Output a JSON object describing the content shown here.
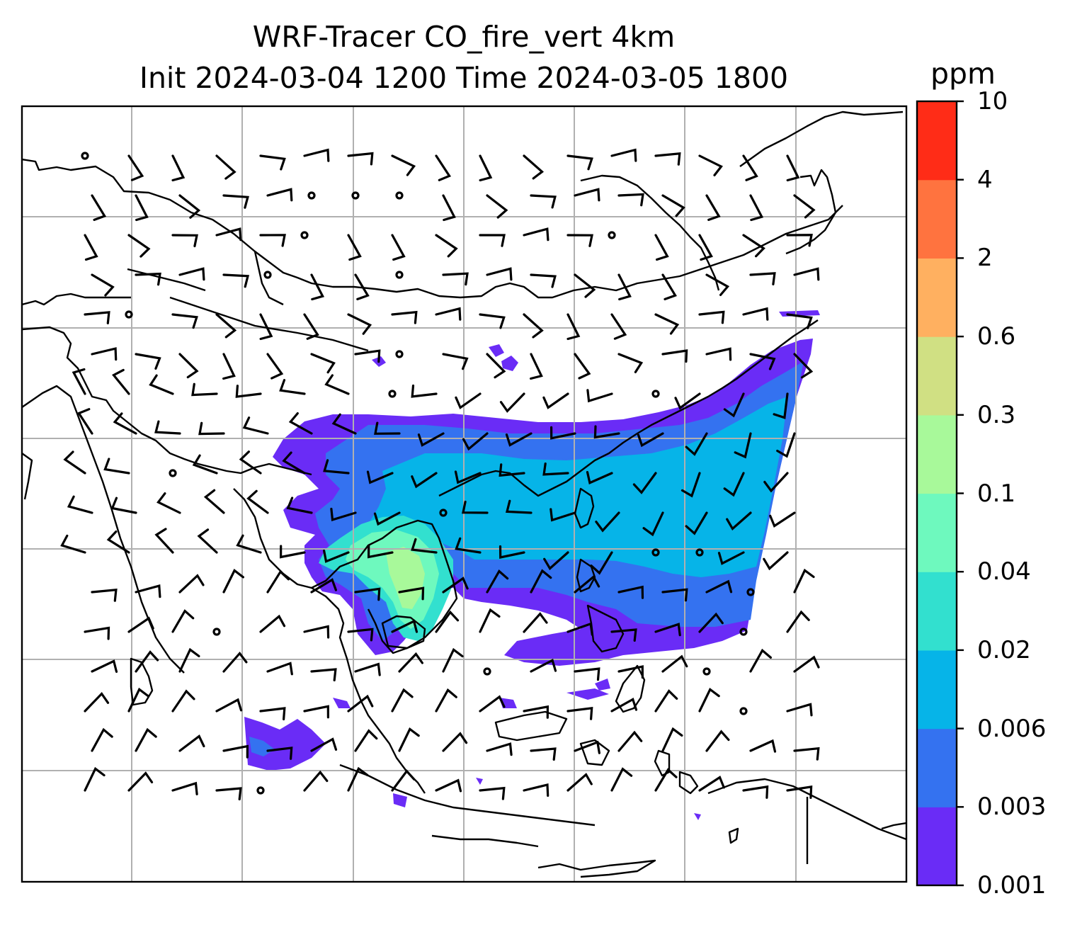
{
  "title": {
    "line1": "WRF-Tracer CO_fire_vert 4km",
    "line2": "Init 2024-03-04 1200 Time 2024-03-05 1800"
  },
  "colorbar": {
    "unit": "ppm",
    "levels": [
      "0.001",
      "0.003",
      "0.006",
      "0.02",
      "0.04",
      "0.1",
      "0.3",
      "0.6",
      "2",
      "4",
      "10"
    ],
    "colors": [
      "#6a2cf6",
      "#3472f0",
      "#06b4e8",
      "#32e0cf",
      "#6ef9be",
      "#a8f99a",
      "#d0e083",
      "#ffb060",
      "#ff733f",
      "#ff2c17"
    ]
  },
  "map": {
    "field_colors": {
      "very_low": "#6a2cf6",
      "low": "#3472f0",
      "mid": "#06b4e8",
      "mid_high": "#32e0cf",
      "high": "#6ef9be",
      "peak": "#a8f99a"
    },
    "coastline_color": "#000000",
    "gridline_color": "#b0b0b0",
    "wind_barbs": "black"
  }
}
